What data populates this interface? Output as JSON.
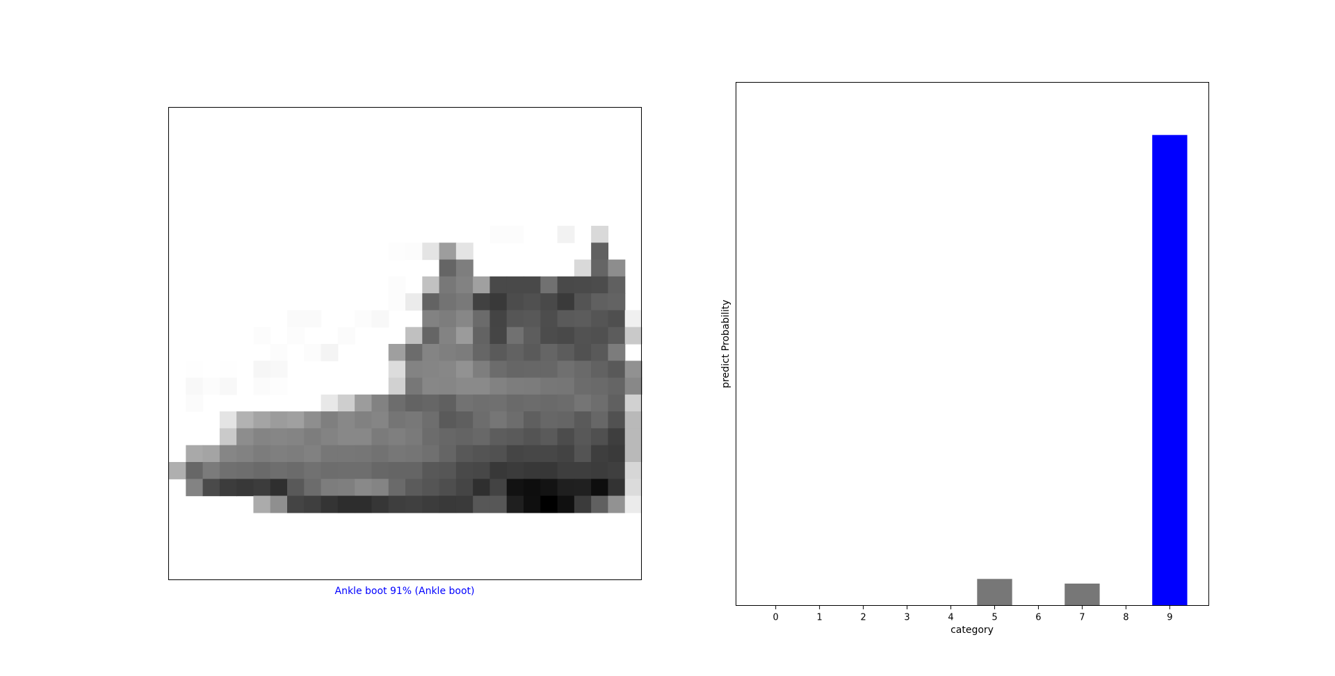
{
  "colors": {
    "highlight": "#0000ff",
    "bar_default": "#777777",
    "caption": "#0000ff"
  },
  "image_panel": {
    "caption": "Ankle boot 91% (Ankle boot)",
    "image": {
      "width": 28,
      "height": 28,
      "rows": {
        "7": [
          0,
          0,
          0,
          0,
          0,
          0,
          0,
          0,
          0,
          0,
          0,
          0,
          0,
          0,
          0,
          0,
          0,
          0,
          0,
          3,
          3,
          0,
          0,
          12,
          0,
          35,
          0,
          0
        ],
        "8": [
          0,
          0,
          0,
          0,
          0,
          0,
          0,
          0,
          0,
          0,
          0,
          0,
          0,
          2,
          3,
          25,
          89,
          25,
          0,
          0,
          0,
          0,
          0,
          0,
          0,
          145,
          0,
          0
        ],
        "9": [
          0,
          0,
          0,
          0,
          0,
          0,
          0,
          0,
          0,
          0,
          0,
          0,
          0,
          0,
          0,
          0,
          140,
          117,
          0,
          0,
          0,
          0,
          0,
          0,
          35,
          140,
          104,
          0
        ],
        "10": [
          0,
          0,
          0,
          0,
          0,
          0,
          0,
          0,
          0,
          0,
          0,
          0,
          0,
          3,
          0,
          56,
          123,
          114,
          86,
          166,
          166,
          166,
          129,
          166,
          165,
          163,
          145,
          0
        ],
        "11": [
          0,
          0,
          0,
          0,
          0,
          0,
          0,
          0,
          0,
          0,
          0,
          0,
          0,
          3,
          18,
          142,
          127,
          122,
          173,
          180,
          163,
          159,
          166,
          179,
          156,
          145,
          142,
          0
        ],
        "12": [
          0,
          0,
          0,
          0,
          0,
          0,
          0,
          5,
          5,
          0,
          0,
          3,
          6,
          0,
          0,
          114,
          118,
          109,
          135,
          170,
          154,
          152,
          162,
          150,
          148,
          155,
          160,
          14
        ],
        "13": [
          0,
          0,
          0,
          0,
          0,
          3,
          0,
          3,
          0,
          0,
          4,
          0,
          0,
          0,
          57,
          140,
          113,
          91,
          142,
          169,
          129,
          147,
          163,
          166,
          157,
          159,
          148,
          49
        ],
        "14": [
          0,
          0,
          0,
          0,
          0,
          0,
          3,
          0,
          3,
          10,
          0,
          0,
          0,
          87,
          134,
          112,
          116,
          119,
          139,
          150,
          143,
          150,
          140,
          148,
          158,
          151,
          119,
          0
        ],
        "15": [
          0,
          1,
          0,
          1,
          0,
          8,
          6,
          0,
          0,
          0,
          0,
          0,
          0,
          32,
          113,
          111,
          109,
          99,
          117,
          134,
          139,
          138,
          138,
          130,
          136,
          143,
          151,
          100
        ],
        "16": [
          0,
          6,
          3,
          6,
          0,
          4,
          2,
          0,
          0,
          0,
          0,
          0,
          0,
          42,
          124,
          109,
          110,
          106,
          106,
          114,
          118,
          119,
          124,
          125,
          134,
          136,
          140,
          108
        ],
        "17": [
          0,
          4,
          0,
          0,
          0,
          0,
          0,
          0,
          0,
          21,
          45,
          90,
          114,
          133,
          142,
          139,
          145,
          128,
          131,
          130,
          136,
          134,
          136,
          134,
          126,
          132,
          145,
          42
        ],
        "18": [
          0,
          0,
          0,
          25,
          70,
          83,
          90,
          86,
          103,
          116,
          108,
          115,
          111,
          126,
          123,
          132,
          150,
          146,
          133,
          125,
          133,
          146,
          138,
          140,
          150,
          138,
          158,
          64
        ],
        "19": [
          0,
          0,
          0,
          48,
          104,
          112,
          110,
          112,
          118,
          113,
          108,
          108,
          120,
          116,
          121,
          134,
          138,
          141,
          137,
          147,
          150,
          156,
          150,
          163,
          152,
          159,
          176,
          64
        ],
        "20": [
          0,
          78,
          83,
          110,
          114,
          119,
          116,
          118,
          115,
          124,
          124,
          125,
          128,
          124,
          126,
          130,
          140,
          152,
          156,
          158,
          169,
          167,
          167,
          171,
          156,
          176,
          179,
          64
        ],
        "21": [
          73,
          138,
          120,
          130,
          132,
          136,
          132,
          135,
          129,
          133,
          132,
          132,
          138,
          140,
          140,
          152,
          154,
          166,
          167,
          181,
          178,
          181,
          182,
          176,
          176,
          177,
          175,
          37
        ],
        "22": [
          0,
          113,
          165,
          177,
          181,
          177,
          189,
          151,
          134,
          118,
          116,
          107,
          112,
          136,
          149,
          155,
          161,
          169,
          189,
          171,
          216,
          219,
          215,
          204,
          203,
          219,
          186,
          33
        ],
        "23": [
          0,
          0,
          0,
          0,
          0,
          76,
          102,
          170,
          175,
          185,
          191,
          191,
          183,
          176,
          174,
          177,
          180,
          179,
          153,
          153,
          204,
          218,
          232,
          217,
          178,
          145,
          99,
          18
        ]
      }
    }
  },
  "chart_data": {
    "type": "bar",
    "categories": [
      "0",
      "1",
      "2",
      "3",
      "4",
      "5",
      "6",
      "7",
      "8",
      "9"
    ],
    "values": [
      0.0,
      0.0,
      0.0,
      0.0,
      0.0,
      0.052,
      0.0,
      0.043,
      0.0,
      0.91
    ],
    "highlight_index": 9,
    "xlabel": "category",
    "ylabel": "predict Probability",
    "ylim": [
      0,
      1
    ],
    "y_ticks_shown": false,
    "grid": false
  }
}
